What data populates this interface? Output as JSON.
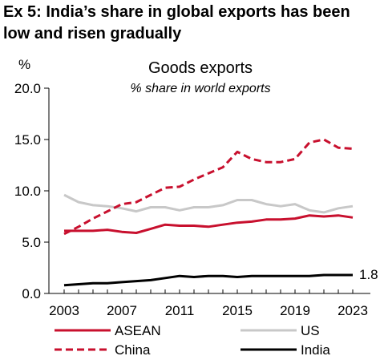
{
  "header": {
    "title": "Ex 5: India’s share in global exports has been low and risen gradually"
  },
  "chart_data": {
    "type": "line",
    "title": "Goods exports",
    "subtitle": "% share in world exports",
    "ylabel": "%",
    "xlabel": "",
    "ylim": [
      0,
      20
    ],
    "yticks": [
      "0.0",
      "5.0",
      "10.0",
      "15.0",
      "20.0"
    ],
    "xlim": [
      2003,
      2023
    ],
    "xticks": [
      "2003",
      "2007",
      "2011",
      "2015",
      "2019",
      "2023"
    ],
    "x": [
      2003,
      2004,
      2005,
      2006,
      2007,
      2008,
      2009,
      2010,
      2011,
      2012,
      2013,
      2014,
      2015,
      2016,
      2017,
      2018,
      2019,
      2020,
      2021,
      2022,
      2023
    ],
    "grid": false,
    "legend_position": "bottom",
    "end_label": "1.8",
    "series": [
      {
        "name": "ASEAN",
        "color": "#c8102e",
        "dash": "solid",
        "values": [
          6.1,
          6.1,
          6.1,
          6.2,
          6.0,
          5.9,
          6.3,
          6.7,
          6.6,
          6.6,
          6.5,
          6.7,
          6.9,
          7.0,
          7.2,
          7.2,
          7.3,
          7.6,
          7.5,
          7.6,
          7.4
        ]
      },
      {
        "name": "US",
        "color": "#c8c8c8",
        "dash": "solid",
        "values": [
          9.6,
          8.9,
          8.6,
          8.5,
          8.3,
          8.0,
          8.4,
          8.4,
          8.1,
          8.4,
          8.4,
          8.6,
          9.1,
          9.1,
          8.7,
          8.5,
          8.7,
          8.1,
          7.9,
          8.3,
          8.5
        ]
      },
      {
        "name": "China",
        "color": "#c8102e",
        "dash": "dashed",
        "values": [
          5.8,
          6.5,
          7.3,
          8.0,
          8.7,
          8.9,
          9.6,
          10.3,
          10.4,
          11.1,
          11.7,
          12.3,
          13.8,
          13.1,
          12.8,
          12.8,
          13.1,
          14.7,
          15.0,
          14.2,
          14.1
        ]
      },
      {
        "name": "India",
        "color": "#000000",
        "dash": "solid",
        "values": [
          0.8,
          0.9,
          1.0,
          1.0,
          1.1,
          1.2,
          1.3,
          1.5,
          1.7,
          1.6,
          1.7,
          1.7,
          1.6,
          1.7,
          1.7,
          1.7,
          1.7,
          1.7,
          1.8,
          1.8,
          1.8
        ]
      }
    ]
  }
}
